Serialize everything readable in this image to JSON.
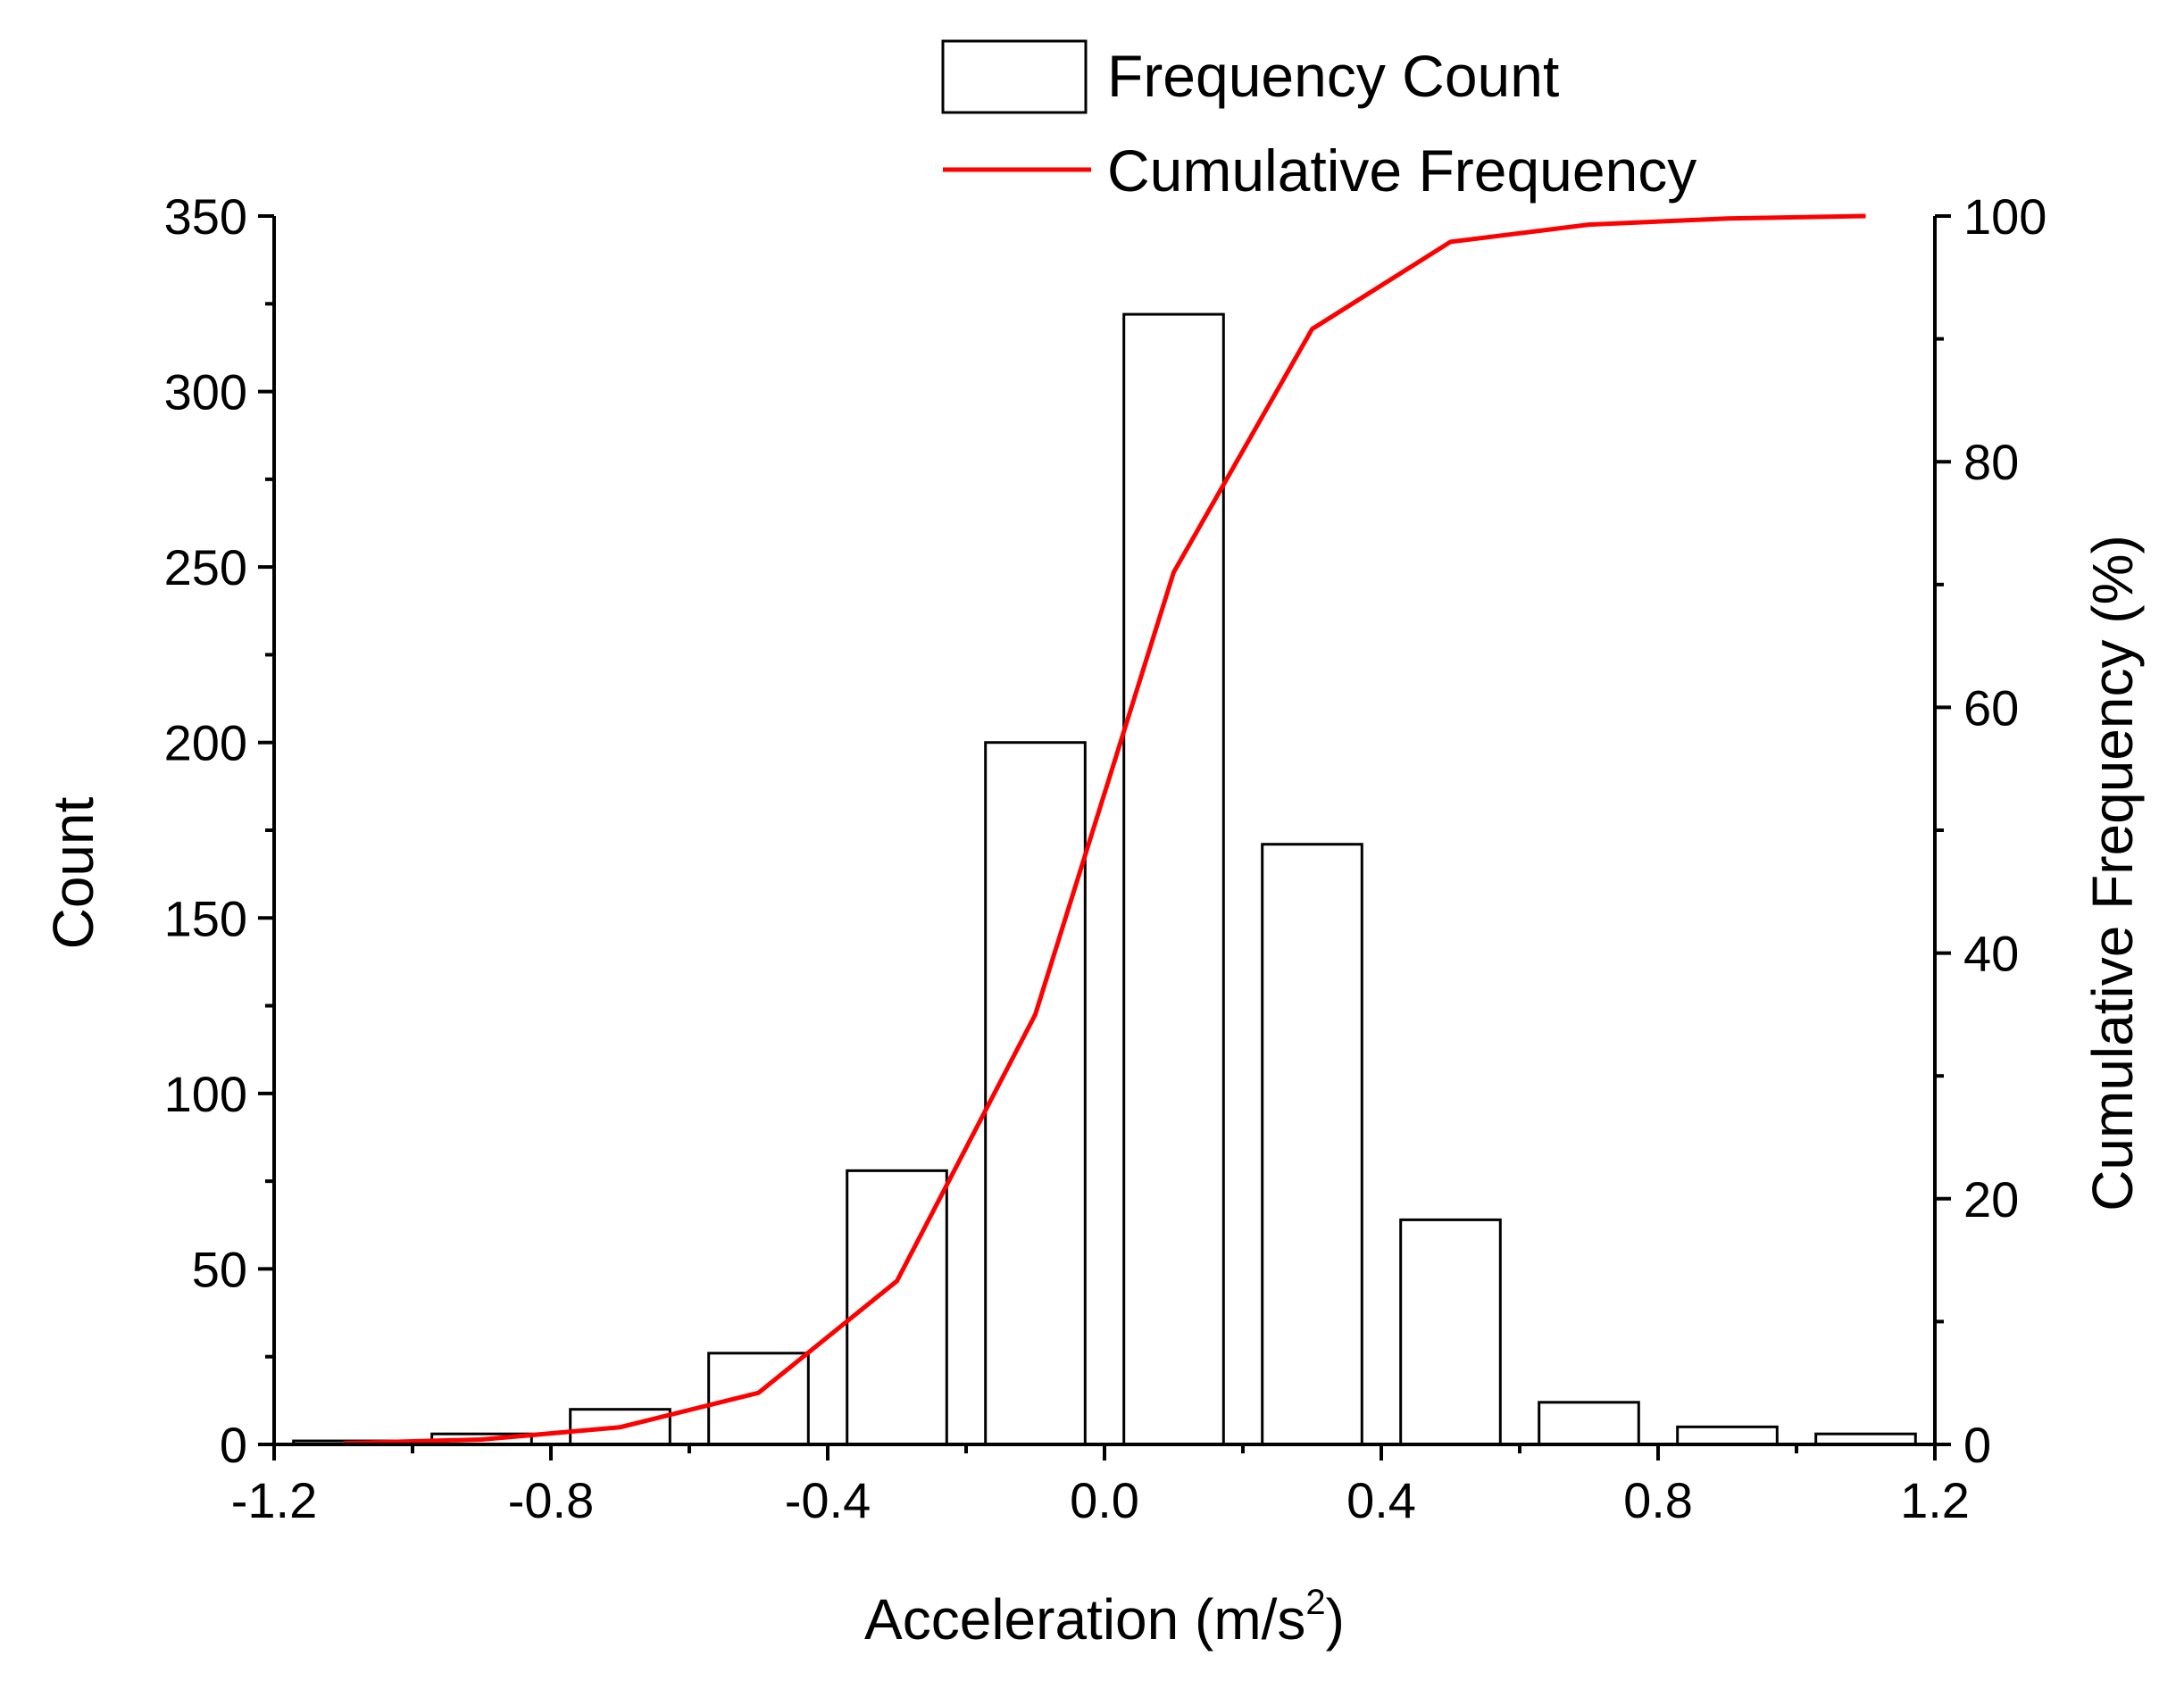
{
  "chart_data": {
    "type": "bar",
    "title": "",
    "xlabel_main": "Acceleration (m/s",
    "xlabel_sup": "2",
    "xlabel_tail": ")",
    "ylabel": "Count",
    "y2label": "Cumulative Frequency (%)",
    "xlim": [
      -1.2,
      1.2
    ],
    "ylim": [
      0,
      350
    ],
    "y2lim": [
      0,
      100
    ],
    "x_ticks": [
      -1.2,
      -0.8,
      -0.4,
      0.0,
      0.4,
      0.8,
      1.2
    ],
    "x_tick_labels": [
      "-1.2",
      "-0.8",
      "-0.4",
      "0.0",
      "0.4",
      "0.8",
      "1.2"
    ],
    "y_ticks": [
      0,
      50,
      100,
      150,
      200,
      250,
      300,
      350
    ],
    "y_tick_labels": [
      "0",
      "50",
      "100",
      "150",
      "200",
      "250",
      "300",
      "350"
    ],
    "y2_ticks": [
      0,
      20,
      40,
      60,
      80,
      100
    ],
    "y2_tick_labels": [
      "0",
      "20",
      "40",
      "60",
      "80",
      "100"
    ],
    "bin_width": 0.2,
    "series": [
      {
        "name": "Frequency Count",
        "type": "bar",
        "x": [
          -1.1,
          -0.9,
          -0.7,
          -0.5,
          -0.3,
          -0.1,
          0.1,
          0.3,
          0.5,
          0.7,
          0.9,
          1.1
        ],
        "values": [
          1,
          3,
          10,
          26,
          78,
          200,
          322,
          171,
          64,
          12,
          5,
          3
        ]
      },
      {
        "name": "Cumulative Frequency",
        "type": "line",
        "axis": "y2",
        "color": "#ff0000",
        "x": [
          -1.1,
          -0.9,
          -0.7,
          -0.5,
          -0.3,
          -0.1,
          0.1,
          0.3,
          0.5,
          0.7,
          0.9,
          1.1
        ],
        "values": [
          0.1,
          0.4,
          1.4,
          4.2,
          13.3,
          35.0,
          71.0,
          90.8,
          97.9,
          99.3,
          99.8,
          100
        ]
      }
    ],
    "legend": {
      "position": "top-right",
      "bar_label": "Frequency Count",
      "line_label": "Cumulative Frequency"
    }
  }
}
